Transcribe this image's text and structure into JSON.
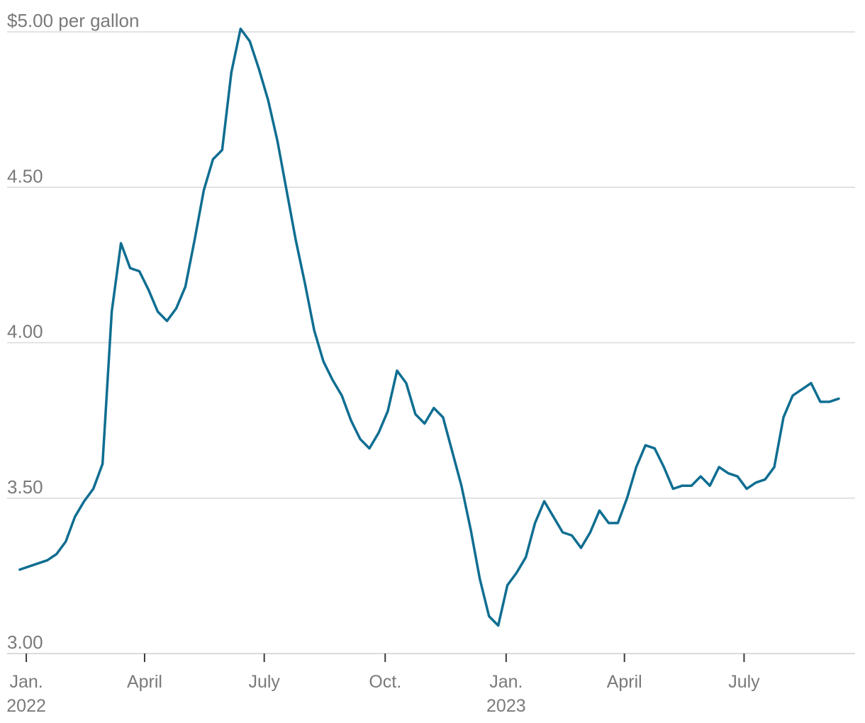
{
  "chart_data": {
    "type": "line",
    "title": "",
    "ylabel": "$5.00 per gallon",
    "xlabel": "",
    "ylim": [
      3.0,
      5.0
    ],
    "grid": true,
    "line_color": "#0f6e91",
    "yticks": [
      {
        "value": 5.0,
        "label": "$5.00 per gallon"
      },
      {
        "value": 4.5,
        "label": "4.50"
      },
      {
        "value": 4.0,
        "label": "4.00"
      },
      {
        "value": 3.5,
        "label": "3.50"
      },
      {
        "value": 3.0,
        "label": "3.00"
      }
    ],
    "xticks": [
      {
        "date": "2022-01-01",
        "label": "Jan.",
        "sublabel": "2022"
      },
      {
        "date": "2022-04-01",
        "label": "April",
        "sublabel": ""
      },
      {
        "date": "2022-07-01",
        "label": "July",
        "sublabel": ""
      },
      {
        "date": "2022-10-01",
        "label": "Oct.",
        "sublabel": ""
      },
      {
        "date": "2023-01-01",
        "label": "Jan.",
        "sublabel": "2023"
      },
      {
        "date": "2023-04-01",
        "label": "April",
        "sublabel": ""
      },
      {
        "date": "2023-07-01",
        "label": "July",
        "sublabel": ""
      }
    ],
    "xrange": [
      "2021-12-12",
      "2023-10-01"
    ],
    "series": [
      {
        "name": "",
        "points": [
          [
            "2021-12-27",
            3.27
          ],
          [
            "2022-01-03",
            3.28
          ],
          [
            "2022-01-10",
            3.29
          ],
          [
            "2022-01-17",
            3.3
          ],
          [
            "2022-01-24",
            3.32
          ],
          [
            "2022-01-31",
            3.36
          ],
          [
            "2022-02-07",
            3.44
          ],
          [
            "2022-02-14",
            3.49
          ],
          [
            "2022-02-21",
            3.53
          ],
          [
            "2022-02-28",
            3.61
          ],
          [
            "2022-03-07",
            4.1
          ],
          [
            "2022-03-14",
            4.32
          ],
          [
            "2022-03-21",
            4.24
          ],
          [
            "2022-03-28",
            4.23
          ],
          [
            "2022-04-04",
            4.17
          ],
          [
            "2022-04-11",
            4.1
          ],
          [
            "2022-04-18",
            4.07
          ],
          [
            "2022-04-25",
            4.11
          ],
          [
            "2022-05-02",
            4.18
          ],
          [
            "2022-05-09",
            4.33
          ],
          [
            "2022-05-16",
            4.49
          ],
          [
            "2022-05-23",
            4.59
          ],
          [
            "2022-05-30",
            4.62
          ],
          [
            "2022-06-06",
            4.87
          ],
          [
            "2022-06-13",
            5.01
          ],
          [
            "2022-06-20",
            4.97
          ],
          [
            "2022-06-27",
            4.88
          ],
          [
            "2022-07-04",
            4.78
          ],
          [
            "2022-07-11",
            4.65
          ],
          [
            "2022-07-18",
            4.49
          ],
          [
            "2022-07-25",
            4.33
          ],
          [
            "2022-08-01",
            4.19
          ],
          [
            "2022-08-08",
            4.04
          ],
          [
            "2022-08-15",
            3.94
          ],
          [
            "2022-08-22",
            3.88
          ],
          [
            "2022-08-29",
            3.83
          ],
          [
            "2022-09-05",
            3.75
          ],
          [
            "2022-09-12",
            3.69
          ],
          [
            "2022-09-19",
            3.66
          ],
          [
            "2022-09-26",
            3.71
          ],
          [
            "2022-10-03",
            3.78
          ],
          [
            "2022-10-10",
            3.91
          ],
          [
            "2022-10-17",
            3.87
          ],
          [
            "2022-10-24",
            3.77
          ],
          [
            "2022-10-31",
            3.74
          ],
          [
            "2022-11-07",
            3.79
          ],
          [
            "2022-11-14",
            3.76
          ],
          [
            "2022-11-21",
            3.65
          ],
          [
            "2022-11-28",
            3.54
          ],
          [
            "2022-12-05",
            3.4
          ],
          [
            "2022-12-12",
            3.24
          ],
          [
            "2022-12-19",
            3.12
          ],
          [
            "2022-12-26",
            3.09
          ],
          [
            "2023-01-02",
            3.22
          ],
          [
            "2023-01-09",
            3.26
          ],
          [
            "2023-01-16",
            3.31
          ],
          [
            "2023-01-23",
            3.42
          ],
          [
            "2023-01-30",
            3.49
          ],
          [
            "2023-02-06",
            3.44
          ],
          [
            "2023-02-13",
            3.39
          ],
          [
            "2023-02-20",
            3.38
          ],
          [
            "2023-02-27",
            3.34
          ],
          [
            "2023-03-06",
            3.39
          ],
          [
            "2023-03-13",
            3.46
          ],
          [
            "2023-03-20",
            3.42
          ],
          [
            "2023-03-27",
            3.42
          ],
          [
            "2023-04-03",
            3.5
          ],
          [
            "2023-04-10",
            3.6
          ],
          [
            "2023-04-17",
            3.67
          ],
          [
            "2023-04-24",
            3.66
          ],
          [
            "2023-05-01",
            3.6
          ],
          [
            "2023-05-08",
            3.53
          ],
          [
            "2023-05-15",
            3.54
          ],
          [
            "2023-05-22",
            3.54
          ],
          [
            "2023-05-29",
            3.57
          ],
          [
            "2023-06-05",
            3.54
          ],
          [
            "2023-06-12",
            3.6
          ],
          [
            "2023-06-19",
            3.58
          ],
          [
            "2023-06-26",
            3.57
          ],
          [
            "2023-07-03",
            3.53
          ],
          [
            "2023-07-10",
            3.55
          ],
          [
            "2023-07-17",
            3.56
          ],
          [
            "2023-07-24",
            3.6
          ],
          [
            "2023-07-31",
            3.76
          ],
          [
            "2023-08-07",
            3.83
          ],
          [
            "2023-08-14",
            3.85
          ],
          [
            "2023-08-21",
            3.87
          ],
          [
            "2023-08-28",
            3.81
          ],
          [
            "2023-09-04",
            3.81
          ],
          [
            "2023-09-11",
            3.82
          ]
        ]
      }
    ]
  }
}
